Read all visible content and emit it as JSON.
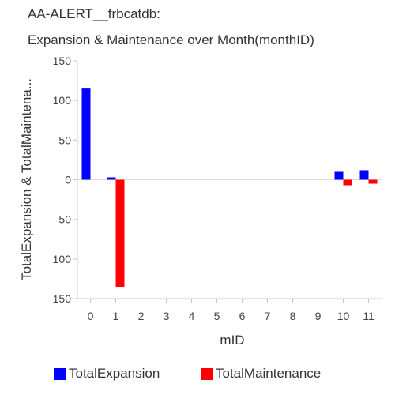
{
  "chart_data": {
    "type": "bar",
    "title_line1": "AA-ALERT__frbcatdb:",
    "title_line2": "Expansion & Maintenance over Month(monthID)",
    "xlabel": "mID",
    "ylabel": "TotalExpansion & TotalMaintena...",
    "categories": [
      "0",
      "1",
      "2",
      "3",
      "4",
      "5",
      "6",
      "7",
      "8",
      "9",
      "10",
      "11"
    ],
    "ylim": [
      -150,
      150
    ],
    "yticks": [
      150,
      100,
      50,
      0,
      -50,
      -100,
      -150
    ],
    "ytick_labels": [
      "150",
      "100",
      "50",
      "0",
      "50",
      "100",
      "150"
    ],
    "grid": false,
    "legend_position": "bottom",
    "series": [
      {
        "name": "TotalExpansion",
        "color": "#0000ff",
        "values": [
          115,
          3,
          0,
          0,
          0,
          0,
          0,
          0,
          0,
          0,
          10,
          12
        ]
      },
      {
        "name": "TotalMaintenance",
        "color": "#ff0000",
        "values": [
          0,
          -135,
          0,
          0,
          0,
          0,
          0,
          0,
          0,
          0,
          -7,
          -5
        ]
      }
    ]
  }
}
